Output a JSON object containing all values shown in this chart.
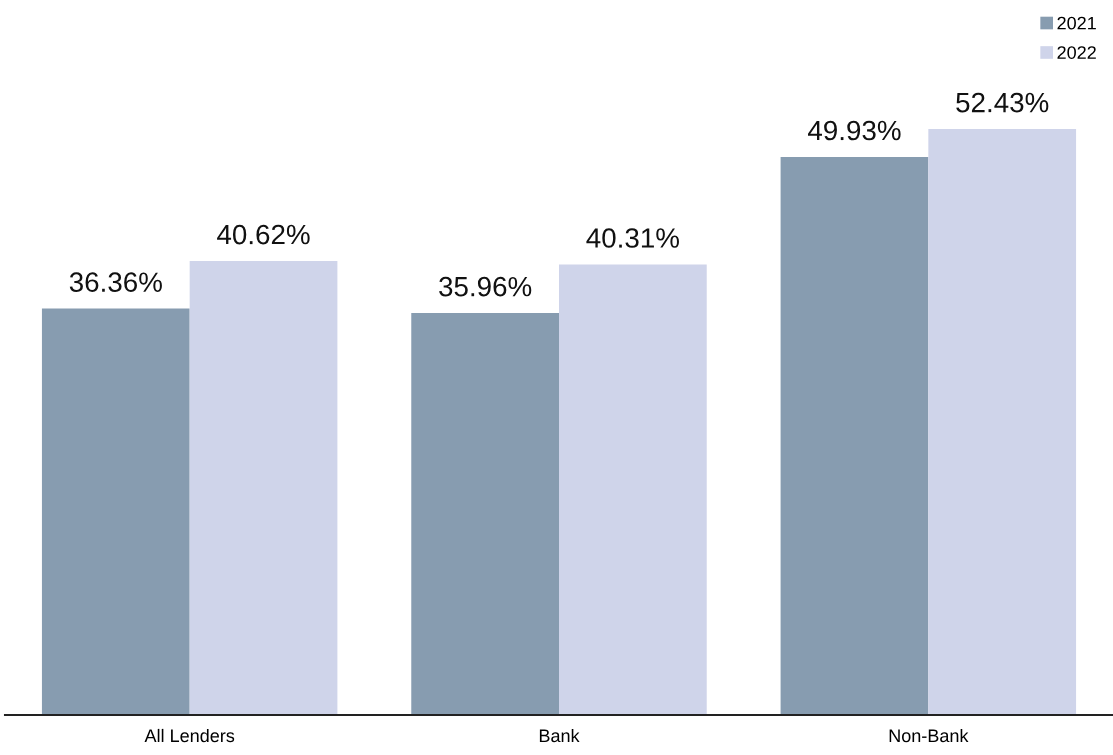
{
  "chart_data": {
    "type": "bar",
    "categories": [
      "All Lenders",
      "Bank",
      "Non-Bank"
    ],
    "series": [
      {
        "name": "2021",
        "color": "#879cb0",
        "values": [
          36.36,
          35.96,
          49.93
        ],
        "value_labels": [
          "36.36%",
          "35.96%",
          "49.93%"
        ]
      },
      {
        "name": "2022",
        "color": "#cfd4ea",
        "values": [
          40.62,
          40.31,
          52.43
        ],
        "value_labels": [
          "40.62%",
          "40.31%",
          "52.43%"
        ]
      }
    ],
    "legend": "top right",
    "grid": false
  }
}
